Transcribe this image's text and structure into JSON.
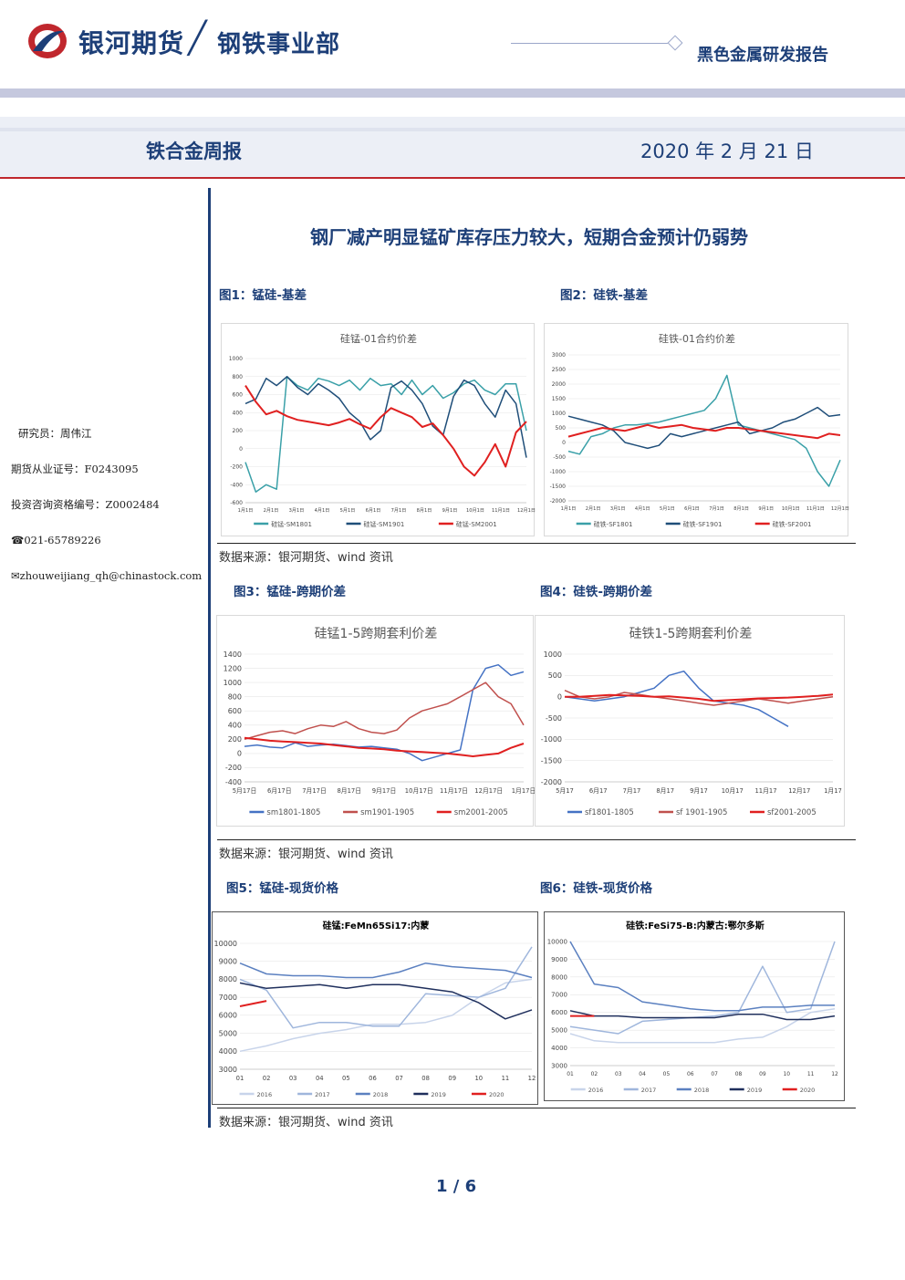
{
  "header": {
    "company": "银河期货",
    "department": "钢铁事业部",
    "report_type": "黑色金属研发报告"
  },
  "title_band": {
    "weekly": "铁合金周报",
    "date": "2020 年 2 月 21 日"
  },
  "headline": "钢厂减产明显锰矿库存压力较大，短期合金预计仍弱势",
  "sidebar": {
    "researcher": "研究员：周伟江",
    "futures_license": "期货从业证号：F0243095",
    "consult_license": "投资咨询资格编号：Z0002484",
    "phone": "☎021-65789226",
    "email": "✉zhouweijiang_qh@chinastock.com"
  },
  "figures": {
    "fig1_label": "图1：锰硅-基差",
    "fig2_label": "图2：硅铁-基差",
    "fig3_label": "图3：锰硅-跨期价差",
    "fig4_label": "图4：硅铁-跨期价差",
    "fig5_label": "图5：锰硅-现货价格",
    "fig6_label": "图6：硅铁-现货价格"
  },
  "sources": {
    "s1": "数据来源：银河期货、wind 资讯",
    "s2": "数据来源：银河期货、wind 资讯",
    "s3": "数据来源：银河期货、wind 资讯"
  },
  "page": "1 / 6",
  "colors": {
    "brand": "#1d3f78",
    "accent_red": "#c0272d"
  },
  "chart_data": [
    {
      "type": "line",
      "title": "硅锰-01合约价差",
      "ylim": [
        -600,
        1000
      ],
      "yticks": [
        "1000",
        "800",
        "600",
        "400",
        "200",
        "0",
        "-200",
        "-400",
        "-600"
      ],
      "xticks": [
        "1月1日",
        "2月1日",
        "3月1日",
        "4月1日",
        "5月1日",
        "6月1日",
        "7月1日",
        "8月1日",
        "9月1日",
        "10月1日",
        "11月1日",
        "12月1日"
      ],
      "series": [
        {
          "name": "硅锰-SM1801",
          "color": "#3aa0a8",
          "values": [
            -150,
            -480,
            -400,
            -450,
            800,
            700,
            650,
            780,
            750,
            700,
            760,
            650,
            780,
            700,
            720,
            600,
            760,
            600,
            700,
            560,
            620,
            720,
            760,
            650,
            600,
            720,
            720,
            200
          ]
        },
        {
          "name": "硅锰-SM1901",
          "color": "#1f4e79",
          "values": [
            500,
            550,
            780,
            700,
            800,
            680,
            600,
            720,
            650,
            560,
            400,
            300,
            100,
            200,
            680,
            750,
            650,
            500,
            250,
            150,
            580,
            760,
            700,
            500,
            350,
            650,
            500,
            -100
          ]
        },
        {
          "name": "硅锰-SM2001",
          "color": "#e02020",
          "values": [
            700,
            520,
            380,
            420,
            360,
            320,
            300,
            280,
            260,
            290,
            330,
            270,
            220,
            350,
            450,
            400,
            350,
            240,
            280,
            150,
            0,
            -200,
            -300,
            -150,
            50,
            -200,
            180,
            300
          ]
        }
      ]
    },
    {
      "type": "line",
      "title": "硅铁-01合约价差",
      "ylim": [
        -2000,
        3000
      ],
      "yticks": [
        "3000",
        "2500",
        "2000",
        "1500",
        "1000",
        "500",
        "0",
        "-500",
        "-1000",
        "-1500",
        "-2000"
      ],
      "xticks": [
        "1月1日",
        "2月1日",
        "3月1日",
        "4月1日",
        "5月1日",
        "6月1日",
        "7月1日",
        "8月1日",
        "9月1日",
        "10月1日",
        "11月1日",
        "12月1日"
      ],
      "series": [
        {
          "name": "硅铁-SF1801",
          "color": "#3aa0a8",
          "values": [
            -300,
            -400,
            200,
            300,
            500,
            600,
            600,
            650,
            700,
            800,
            900,
            1000,
            1100,
            1500,
            2300,
            600,
            500,
            400,
            300,
            200,
            100,
            -200,
            -1000,
            -1500,
            -600
          ]
        },
        {
          "name": "硅铁-SF1901",
          "color": "#1f4e79",
          "values": [
            900,
            800,
            700,
            600,
            400,
            0,
            -100,
            -200,
            -100,
            300,
            200,
            300,
            400,
            500,
            600,
            700,
            300,
            400,
            500,
            700,
            800,
            1000,
            1200,
            900,
            950
          ]
        },
        {
          "name": "硅铁-SF2001",
          "color": "#e02020",
          "values": [
            200,
            300,
            400,
            500,
            450,
            400,
            500,
            600,
            500,
            550,
            600,
            500,
            450,
            400,
            500,
            500,
            450,
            400,
            350,
            300,
            250,
            200,
            150,
            300,
            250
          ]
        }
      ]
    },
    {
      "type": "line",
      "title": "硅锰1-5跨期套利价差",
      "ylim": [
        -400,
        1400
      ],
      "yticks": [
        "1400",
        "1200",
        "1000",
        "800",
        "600",
        "400",
        "200",
        "0",
        "-200",
        "-400"
      ],
      "xticks": [
        "5月17日",
        "6月17日",
        "7月17日",
        "8月17日",
        "9月17日",
        "10月17日",
        "11月17日",
        "12月17日",
        "1月17日"
      ],
      "series": [
        {
          "name": "sm1801-1805",
          "color": "#4472c4",
          "values": [
            100,
            120,
            90,
            80,
            150,
            100,
            120,
            130,
            110,
            90,
            100,
            80,
            60,
            0,
            -100,
            -50,
            0,
            50,
            900,
            1200,
            1250,
            1100,
            1150
          ]
        },
        {
          "name": "sm1901-1905",
          "color": "#c0504d",
          "values": [
            200,
            250,
            300,
            320,
            280,
            350,
            400,
            380,
            450,
            350,
            300,
            280,
            330,
            500,
            600,
            650,
            700,
            800,
            900,
            1000,
            800,
            700,
            400
          ]
        },
        {
          "name": "sm2001-2005",
          "color": "#e02020",
          "values": [
            220,
            200,
            180,
            170,
            160,
            150,
            140,
            120,
            100,
            80,
            70,
            60,
            40,
            30,
            20,
            10,
            0,
            -20,
            -40,
            -20,
            0,
            80,
            140
          ]
        }
      ]
    },
    {
      "type": "line",
      "title": "硅铁1-5跨期套利价差",
      "ylim": [
        -2000,
        1000
      ],
      "yticks": [
        "1000",
        "500",
        "0",
        "-500",
        "-1000",
        "-1500",
        "-2000"
      ],
      "xticks": [
        "5月17",
        "6月17",
        "7月17",
        "8月17",
        "9月17",
        "10月17",
        "11月17",
        "12月17",
        "1月17"
      ],
      "series": [
        {
          "name": "sf1801-1805",
          "color": "#4472c4",
          "values": [
            0,
            -50,
            -100,
            -50,
            0,
            100,
            200,
            500,
            600,
            200,
            -100,
            -150,
            -200,
            -300,
            -500,
            -700
          ]
        },
        {
          "name": "sf 1901-1905",
          "color": "#c0504d",
          "values": [
            150,
            0,
            -50,
            0,
            100,
            50,
            0,
            -50,
            -100,
            -150,
            -200,
            -150,
            -100,
            -50,
            -100,
            -150,
            -100,
            -50,
            0
          ]
        },
        {
          "name": "sf2001-2005",
          "color": "#e02020",
          "values": [
            0,
            0,
            20,
            40,
            30,
            20,
            0,
            10,
            -20,
            -50,
            -100,
            -80,
            -60,
            -40,
            -30,
            -20,
            0,
            20,
            50
          ]
        }
      ]
    },
    {
      "type": "line",
      "title": "硅锰:FeMn65Si17:内蒙",
      "ylim": [
        3000,
        10000
      ],
      "yticks": [
        "10000",
        "9000",
        "8000",
        "7000",
        "6000",
        "5000",
        "4000",
        "3000"
      ],
      "xticks": [
        "01",
        "02",
        "03",
        "04",
        "05",
        "06",
        "07",
        "08",
        "09",
        "10",
        "11",
        "12"
      ],
      "series": [
        {
          "name": "2016",
          "color": "#c8d4ea",
          "values": [
            4000,
            4300,
            4700,
            5000,
            5200,
            5500,
            5500,
            5600,
            6000,
            7000,
            7800,
            8000
          ]
        },
        {
          "name": "2017",
          "color": "#9fb6dc",
          "values": [
            8000,
            7400,
            5300,
            5600,
            5600,
            5400,
            5400,
            7200,
            7100,
            7000,
            7500,
            9800
          ]
        },
        {
          "name": "2018",
          "color": "#5b80c0",
          "values": [
            8900,
            8300,
            8200,
            8200,
            8100,
            8100,
            8400,
            8900,
            8700,
            8600,
            8500,
            8100
          ]
        },
        {
          "name": "2019",
          "color": "#1f2f5c",
          "values": [
            7800,
            7500,
            7600,
            7700,
            7500,
            7700,
            7700,
            7500,
            7300,
            6700,
            5800,
            6300
          ]
        },
        {
          "name": "2020",
          "color": "#e02020",
          "values": [
            6500,
            6800
          ]
        }
      ]
    },
    {
      "type": "line",
      "title": "硅铁:FeSi75-B:内蒙古:鄂尔多斯",
      "ylim": [
        3000,
        10000
      ],
      "yticks": [
        "10000",
        "9000",
        "8000",
        "7000",
        "6000",
        "5000",
        "4000",
        "3000"
      ],
      "xticks": [
        "01",
        "02",
        "03",
        "04",
        "05",
        "06",
        "07",
        "08",
        "09",
        "10",
        "11",
        "12"
      ],
      "series": [
        {
          "name": "2016",
          "color": "#c8d4ea",
          "values": [
            4800,
            4400,
            4300,
            4300,
            4300,
            4300,
            4300,
            4500,
            4600,
            5200,
            6000,
            6200
          ]
        },
        {
          "name": "2017",
          "color": "#9fb6dc",
          "values": [
            5200,
            5000,
            4800,
            5500,
            5600,
            5700,
            5800,
            6000,
            8600,
            6000,
            6200,
            10000
          ]
        },
        {
          "name": "2018",
          "color": "#5b80c0",
          "values": [
            10000,
            7600,
            7400,
            6600,
            6400,
            6200,
            6100,
            6100,
            6300,
            6300,
            6400,
            6400
          ]
        },
        {
          "name": "2019",
          "color": "#1f2f5c",
          "values": [
            6100,
            5800,
            5800,
            5700,
            5700,
            5700,
            5700,
            5900,
            5900,
            5600,
            5600,
            5800
          ]
        },
        {
          "name": "2020",
          "color": "#e02020",
          "values": [
            5800,
            5800
          ]
        }
      ]
    }
  ]
}
